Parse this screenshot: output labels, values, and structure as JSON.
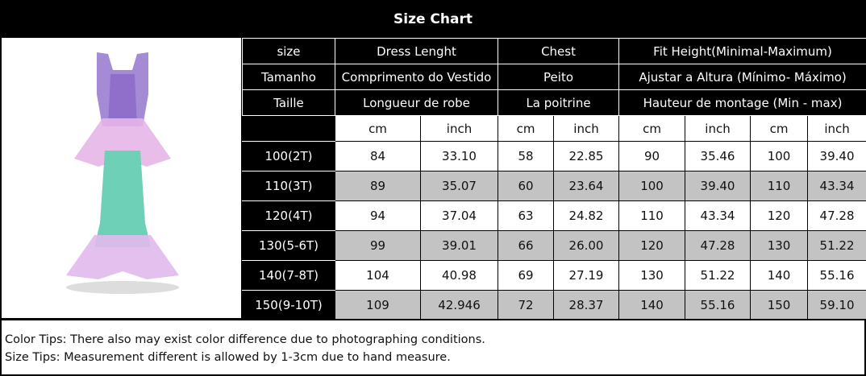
{
  "title": "Size Chart",
  "headers": [
    [
      "size",
      "Dress Lenght",
      "Chest",
      "Fit Height(Minimal-Maximum)"
    ],
    [
      "Tamanho",
      "Comprimento do Vestido",
      "Peito",
      "Ajustar a Altura (Mínimo- Máximo)"
    ],
    [
      "Taille",
      "Longueur de robe",
      "La poitrine",
      "Hauteur de montage (Min - max)"
    ]
  ],
  "units": [
    "",
    "cm",
    "inch",
    "cm",
    "inch",
    "cm",
    "inch",
    "cm",
    "inch"
  ],
  "rows": [
    [
      "100(2T)",
      "84",
      "33.10",
      "58",
      "22.85",
      "90",
      "35.46",
      "100",
      "39.40"
    ],
    [
      "110(3T)",
      "89",
      "35.07",
      "60",
      "23.64",
      "100",
      "39.40",
      "110",
      "43.34"
    ],
    [
      "120(4T)",
      "94",
      "37.04",
      "63",
      "24.82",
      "110",
      "43.34",
      "120",
      "47.28"
    ],
    [
      "130(5-6T)",
      "99",
      "39.01",
      "66",
      "26.00",
      "120",
      "47.28",
      "130",
      "51.22"
    ],
    [
      "140(7-8T)",
      "104",
      "40.98",
      "69",
      "27.19",
      "130",
      "51.22",
      "140",
      "55.16"
    ],
    [
      "150(9-10T)",
      "109",
      "42.946",
      "72",
      "28.37",
      "140",
      "55.16",
      "150",
      "59.10"
    ]
  ],
  "footer": {
    "color_tip": "Color Tips: There also may exist color difference due to photographing conditions.",
    "size_tip": "Size Tips: Measurement different is allowed by 1-3cm due to hand measure."
  },
  "colors": {
    "header_bg": "#000000",
    "alt_row": "#c3c3c3"
  }
}
